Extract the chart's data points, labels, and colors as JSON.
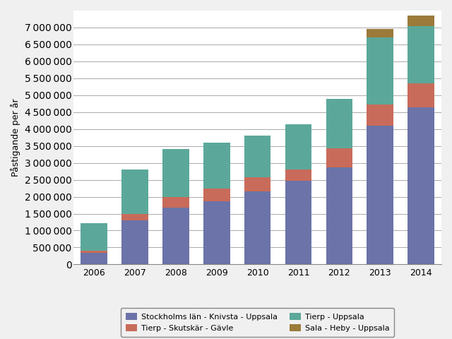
{
  "years": [
    2006,
    2007,
    2008,
    2009,
    2010,
    2011,
    2012,
    2013,
    2014
  ],
  "series": {
    "Stockholms län - Knivsta - Uppsala": [
      350000,
      1300000,
      1680000,
      1870000,
      2150000,
      2480000,
      2870000,
      4100000,
      4650000
    ],
    "Tierp - Skutskär - Gävle": [
      50000,
      200000,
      320000,
      370000,
      420000,
      330000,
      570000,
      620000,
      700000
    ],
    "Tierp - Uppsala": [
      820000,
      1300000,
      1400000,
      1360000,
      1230000,
      1340000,
      1460000,
      1980000,
      1700000
    ],
    "Sala - Heby - Uppsala": [
      0,
      0,
      0,
      0,
      0,
      0,
      0,
      260000,
      310000
    ]
  },
  "colors": {
    "Stockholms län - Knivsta - Uppsala": "#6B73A8",
    "Tierp - Skutskär - Gävle": "#C96B5A",
    "Tierp - Uppsala": "#5BA89A",
    "Sala - Heby - Uppsala": "#9B7A3A"
  },
  "ylabel": "Påstigande per år",
  "ylim": [
    0,
    7500000
  ],
  "yticks": [
    0,
    500000,
    1000000,
    1500000,
    2000000,
    2500000,
    3000000,
    3500000,
    4000000,
    4500000,
    5000000,
    5500000,
    6000000,
    6500000,
    7000000
  ],
  "background_color": "#f0f0f0",
  "plot_background": "#ffffff",
  "grid_color": "#aaaaaa",
  "bar_width": 0.65,
  "legend_order": [
    "Stockholms län - Knivsta - Uppsala",
    "Tierp - Skutskär - Gävle",
    "Tierp - Uppsala",
    "Sala - Heby - Uppsala"
  ],
  "legend_ncol": 2,
  "figsize": [
    6.4,
    4.8
  ],
  "dpi": 100
}
